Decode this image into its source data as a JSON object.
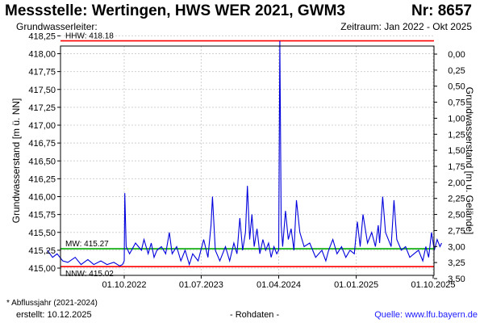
{
  "header": {
    "title": "Messstelle: Wertingen, HWS WER 2021, GWM3",
    "number": "Nr: 8657",
    "aquifer": "Grundwasserleiter:",
    "period": "Zeitraum: Jan 2022 - Okt 2025"
  },
  "footer": {
    "abfluss_note": "* Abflussjahr (2021-2024)",
    "created": "erstellt:  10.12.2025",
    "data_type": "- Rohdaten -",
    "source": "Quelle:  www.lfu.bayern.de"
  },
  "chart_data": {
    "type": "line",
    "ylabel": "Grundwasserstand [m ü. NN]",
    "y2label": "Grundwasserstand [m u. Gelände]",
    "ylim": [
      415.0,
      418.25
    ],
    "y2lim": [
      3.5,
      0.0
    ],
    "grid": true,
    "yticks": [
      415.0,
      415.25,
      415.5,
      415.75,
      416.0,
      416.25,
      416.5,
      416.75,
      417.0,
      417.25,
      417.5,
      417.75,
      418.0,
      418.25
    ],
    "ytick_labels": [
      "415,00",
      "415,25",
      "415,50",
      "415,75",
      "416,00",
      "416,25",
      "416,50",
      "416,75",
      "417,00",
      "417,25",
      "417,50",
      "417,75",
      "418,00",
      "418,25"
    ],
    "y2ticks": [
      "0,00",
      "0,25",
      "0,50",
      "0,75",
      "1,00",
      "1,25",
      "1,50",
      "1,75",
      "2,00",
      "2,25",
      "2,50",
      "2,75",
      "3,00",
      "3,25",
      "3,50"
    ],
    "xlim": [
      "2022-01-01",
      "2025-10-31"
    ],
    "xticks": [
      {
        "date": "2022-10-01",
        "label": "01.10.2022"
      },
      {
        "date": "2023-07-01",
        "label": "01.07.2023"
      },
      {
        "date": "2024-04-01",
        "label": "01.04.2024"
      },
      {
        "date": "2025-01-01",
        "label": "01.01.2025"
      },
      {
        "date": "2025-10-01",
        "label": "01.10.2025"
      }
    ],
    "reference_lines": [
      {
        "label": "HHW: 418.18",
        "value": 418.18,
        "color": "#ff0000"
      },
      {
        "label": "MW: 415.27",
        "value": 415.27,
        "color": "#00aa00"
      },
      {
        "label": "NNW: 415.02",
        "value": 415.02,
        "color": "#ff0000"
      }
    ],
    "series": [
      {
        "color": "#0000dd",
        "x": [
          "2022-01-01",
          "2022-01-20",
          "2022-02-05",
          "2022-02-25",
          "2022-03-15",
          "2022-04-10",
          "2022-05-01",
          "2022-05-25",
          "2022-06-15",
          "2022-07-10",
          "2022-08-01",
          "2022-08-25",
          "2022-09-15",
          "2022-09-25",
          "2022-10-01",
          "2022-10-03",
          "2022-10-08",
          "2022-10-20",
          "2022-11-10",
          "2022-12-01",
          "2022-12-10",
          "2022-12-25",
          "2023-01-05",
          "2023-01-15",
          "2023-01-25",
          "2023-02-10",
          "2023-02-25",
          "2023-03-10",
          "2023-03-20",
          "2023-04-05",
          "2023-04-20",
          "2023-05-05",
          "2023-05-20",
          "2023-06-01",
          "2023-06-20",
          "2023-07-10",
          "2023-07-25",
          "2023-08-05",
          "2023-08-10",
          "2023-08-20",
          "2023-09-05",
          "2023-09-25",
          "2023-10-10",
          "2023-10-25",
          "2023-11-05",
          "2023-11-15",
          "2023-11-25",
          "2023-12-05",
          "2023-12-12",
          "2023-12-20",
          "2023-12-28",
          "2024-01-05",
          "2024-01-15",
          "2024-01-25",
          "2024-02-05",
          "2024-02-15",
          "2024-02-25",
          "2024-03-05",
          "2024-03-15",
          "2024-03-25",
          "2024-04-01",
          "2024-04-05",
          "2024-04-10",
          "2024-04-15",
          "2024-04-25",
          "2024-05-05",
          "2024-05-15",
          "2024-05-25",
          "2024-06-03",
          "2024-06-15",
          "2024-06-30",
          "2024-07-20",
          "2024-08-10",
          "2024-09-01",
          "2024-09-15",
          "2024-09-25",
          "2024-10-10",
          "2024-10-25",
          "2024-11-10",
          "2024-11-25",
          "2024-12-10",
          "2024-12-25",
          "2025-01-05",
          "2025-01-15",
          "2025-01-25",
          "2025-02-10",
          "2025-02-25",
          "2025-03-10",
          "2025-03-20",
          "2025-03-25",
          "2025-04-05",
          "2025-04-15",
          "2025-04-25",
          "2025-05-05",
          "2025-05-15",
          "2025-05-25",
          "2025-06-10",
          "2025-06-25",
          "2025-07-10",
          "2025-07-25",
          "2025-08-10",
          "2025-08-25",
          "2025-09-05",
          "2025-09-15",
          "2025-09-25",
          "2025-10-05",
          "2025-10-15",
          "2025-10-25",
          "2025-10-31"
        ],
        "y": [
          415.25,
          415.15,
          415.2,
          415.1,
          415.08,
          415.15,
          415.05,
          415.12,
          415.05,
          415.1,
          415.05,
          415.08,
          415.03,
          415.05,
          415.1,
          416.05,
          415.3,
          415.2,
          415.35,
          415.25,
          415.4,
          415.2,
          415.35,
          415.15,
          415.25,
          415.3,
          415.2,
          415.5,
          415.2,
          415.3,
          415.1,
          415.25,
          415.05,
          415.2,
          415.1,
          415.4,
          415.15,
          415.6,
          416.0,
          415.25,
          415.1,
          415.3,
          415.1,
          415.35,
          415.2,
          415.7,
          415.25,
          415.5,
          416.15,
          415.4,
          415.75,
          415.3,
          415.55,
          415.2,
          415.4,
          415.25,
          415.35,
          415.15,
          415.3,
          415.2,
          415.25,
          418.18,
          415.6,
          415.3,
          415.8,
          415.4,
          415.55,
          415.25,
          415.95,
          415.5,
          415.3,
          415.35,
          415.15,
          415.25,
          415.1,
          415.25,
          415.4,
          415.2,
          415.3,
          415.15,
          415.25,
          415.2,
          415.65,
          415.3,
          415.75,
          415.35,
          415.5,
          415.3,
          415.6,
          415.35,
          416.0,
          415.5,
          415.4,
          415.3,
          415.95,
          415.4,
          415.25,
          415.3,
          415.15,
          415.2,
          415.25,
          415.1,
          415.3,
          415.15,
          415.5,
          415.25,
          415.4,
          415.3,
          415.35
        ]
      }
    ]
  }
}
